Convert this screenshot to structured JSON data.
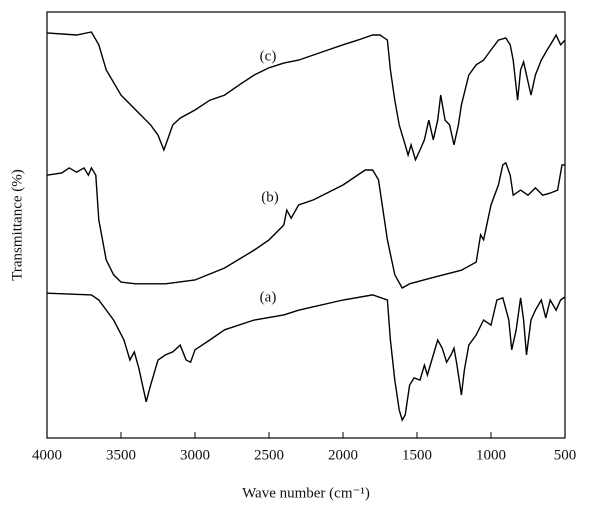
{
  "chart_data": {
    "type": "line",
    "x_label": "Wave number (cm⁻¹)",
    "y_label": "Transmittance (%)",
    "xlim": [
      4000,
      500
    ],
    "xticks": [
      4000,
      3500,
      3000,
      2500,
      2000,
      1500,
      1000,
      500
    ],
    "ylim": [
      0,
      100
    ],
    "series": [
      {
        "name": "(c)",
        "color": "#000000",
        "x": [
          4000,
          3800,
          3700,
          3650,
          3600,
          3500,
          3400,
          3300,
          3250,
          3210,
          3150,
          3100,
          3000,
          2900,
          2800,
          2700,
          2600,
          2500,
          2400,
          2300,
          2200,
          2100,
          2000,
          1900,
          1800,
          1750,
          1700,
          1680,
          1650,
          1620,
          1580,
          1560,
          1540,
          1510,
          1480,
          1450,
          1420,
          1390,
          1360,
          1340,
          1310,
          1280,
          1250,
          1220,
          1200,
          1150,
          1100,
          1050,
          1000,
          950,
          900,
          870,
          850,
          820,
          800,
          780,
          760,
          730,
          700,
          660,
          620,
          580,
          560,
          530,
          500
        ],
        "values": [
          95.1,
          94.6,
          95.3,
          92.3,
          86.4,
          80.5,
          77.0,
          73.5,
          71.1,
          67.6,
          73.5,
          75.1,
          77.0,
          79.3,
          80.5,
          82.9,
          85.2,
          86.9,
          88.0,
          88.7,
          89.9,
          91.1,
          92.3,
          93.4,
          94.6,
          94.6,
          93.4,
          86.4,
          79.3,
          73.5,
          68.8,
          66.4,
          68.8,
          65.3,
          67.6,
          70.0,
          74.6,
          70.0,
          74.6,
          80.5,
          74.6,
          73.5,
          68.8,
          73.5,
          78.2,
          85.2,
          87.6,
          88.7,
          91.1,
          93.4,
          93.9,
          92.3,
          88.7,
          79.3,
          86.4,
          88.3,
          85.2,
          80.5,
          85.2,
          88.7,
          91.1,
          93.4,
          94.6,
          92.3,
          93.4
        ]
      },
      {
        "name": "(b)",
        "color": "#000000",
        "x": [
          4000,
          3900,
          3850,
          3800,
          3750,
          3720,
          3700,
          3670,
          3650,
          3600,
          3550,
          3500,
          3400,
          3200,
          3000,
          2800,
          2600,
          2500,
          2400,
          2380,
          2350,
          2300,
          2200,
          2000,
          1850,
          1800,
          1760,
          1700,
          1650,
          1600,
          1550,
          1400,
          1200,
          1100,
          1070,
          1050,
          1000,
          950,
          920,
          900,
          870,
          850,
          800,
          750,
          700,
          650,
          600,
          550,
          520,
          500
        ],
        "values": [
          61.7,
          62.2,
          63.4,
          62.4,
          63.4,
          61.7,
          63.4,
          61.7,
          51.2,
          41.8,
          38.3,
          36.6,
          36.2,
          36.2,
          37.1,
          39.9,
          44.1,
          46.5,
          50.0,
          53.5,
          51.6,
          54.7,
          55.9,
          59.4,
          62.9,
          62.9,
          60.6,
          46.5,
          38.3,
          35.2,
          36.2,
          37.6,
          39.4,
          41.3,
          47.7,
          46.5,
          54.7,
          59.4,
          64.1,
          64.6,
          61.7,
          57.0,
          58.2,
          57.0,
          58.7,
          57.0,
          57.5,
          58.2,
          64.1,
          64.1
        ]
      },
      {
        "name": "(a)",
        "color": "#000000",
        "x": [
          4000,
          3700,
          3650,
          3550,
          3480,
          3440,
          3410,
          3380,
          3330,
          3300,
          3250,
          3200,
          3150,
          3100,
          3060,
          3030,
          3000,
          2900,
          2800,
          2600,
          2400,
          2300,
          2000,
          1800,
          1700,
          1680,
          1650,
          1620,
          1600,
          1580,
          1550,
          1520,
          1480,
          1450,
          1430,
          1400,
          1360,
          1330,
          1300,
          1270,
          1250,
          1230,
          1200,
          1180,
          1150,
          1100,
          1050,
          1000,
          960,
          920,
          880,
          860,
          830,
          800,
          780,
          760,
          730,
          700,
          660,
          630,
          600,
          560,
          530,
          500
        ],
        "values": [
          34.0,
          33.6,
          32.4,
          27.7,
          23.0,
          18.3,
          20.2,
          16.4,
          8.5,
          12.4,
          18.3,
          19.5,
          20.2,
          21.8,
          18.3,
          17.8,
          20.7,
          23.0,
          25.4,
          27.7,
          28.9,
          30.0,
          32.4,
          33.6,
          32.4,
          23.0,
          13.6,
          6.6,
          4.2,
          5.4,
          12.4,
          14.1,
          13.6,
          17.1,
          14.8,
          18.3,
          23.0,
          21.1,
          17.8,
          19.5,
          21.1,
          17.1,
          10.1,
          16.0,
          21.8,
          24.2,
          27.7,
          26.5,
          32.4,
          32.9,
          27.7,
          20.7,
          25.4,
          32.9,
          27.7,
          19.5,
          27.7,
          30.0,
          32.4,
          28.2,
          32.4,
          30.0,
          32.4,
          33.1
        ]
      }
    ]
  }
}
